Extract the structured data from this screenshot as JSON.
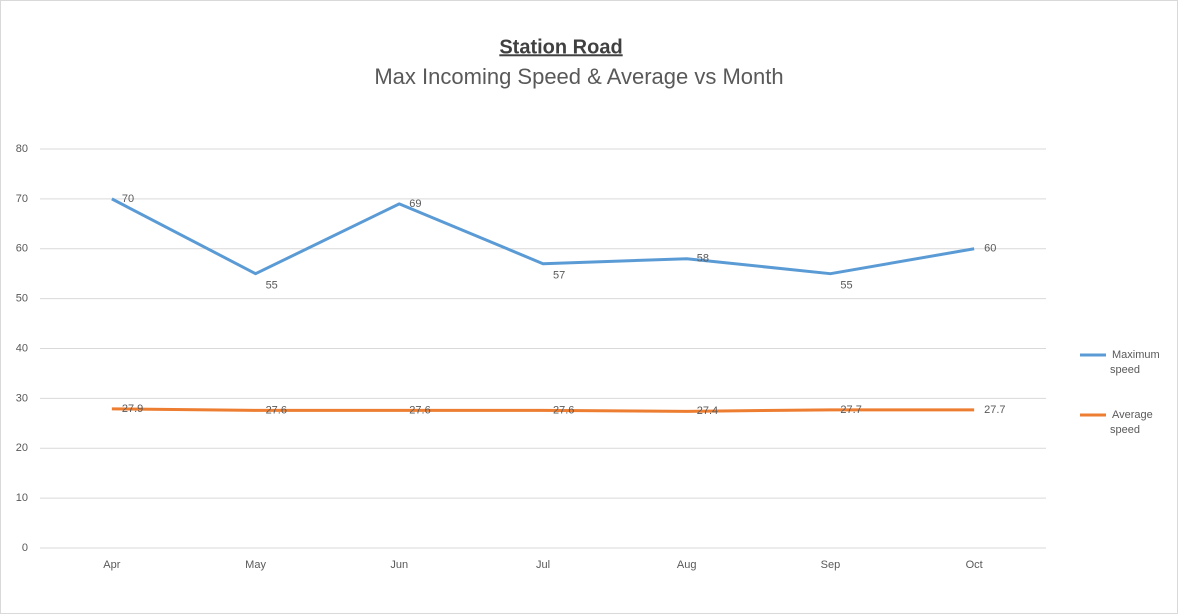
{
  "chart_data": {
    "type": "line",
    "title": "Station Road",
    "subtitle": "Max Incoming Speed & Average vs Month",
    "categories": [
      "Apr",
      "May",
      "Jun",
      "Jul",
      "Aug",
      "Sep",
      "Oct"
    ],
    "series": [
      {
        "name": "Maximum speed",
        "color": "#5b9bd5",
        "values": [
          70,
          55,
          69,
          57,
          58,
          55,
          60
        ]
      },
      {
        "name": "Average speed",
        "color": "#ed7d31",
        "values": [
          27.9,
          27.6,
          27.6,
          27.6,
          27.4,
          27.7,
          27.7
        ]
      }
    ],
    "ylim": [
      0,
      80
    ],
    "yticks": [
      0,
      10,
      20,
      30,
      40,
      50,
      60,
      70,
      80
    ],
    "grid": true,
    "legend": "right",
    "data_labels": true
  }
}
